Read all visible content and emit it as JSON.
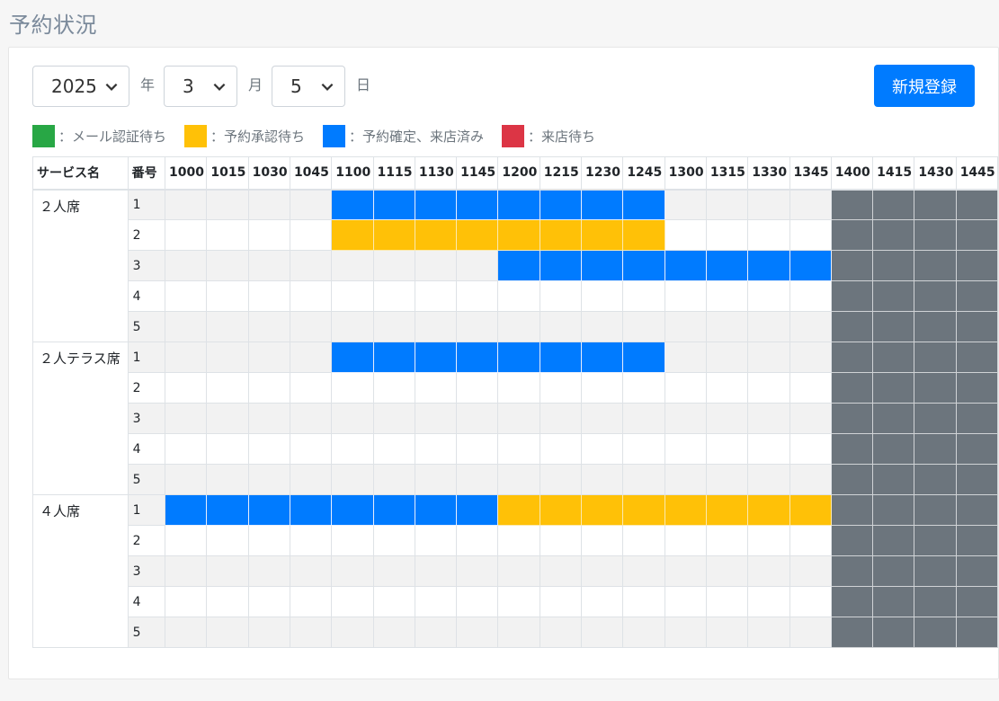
{
  "title": "予約状況",
  "date": {
    "year": "2025",
    "year_unit": "年",
    "month": "3",
    "month_unit": "月",
    "day": "5",
    "day_unit": "日"
  },
  "new_button_label": "新規登録",
  "legend": [
    {
      "color": "#28a745",
      "label": "：メール認証待ち"
    },
    {
      "color": "#ffc107",
      "label": "：予約承認待ち"
    },
    {
      "color": "#007bff",
      "label": "：予約確定、来店済み"
    },
    {
      "color": "#dc3545",
      "label": "：来店待ち"
    }
  ],
  "table": {
    "service_header": "サービス名",
    "number_header": "番号",
    "times": [
      "1000",
      "1015",
      "1030",
      "1045",
      "1100",
      "1115",
      "1130",
      "1145",
      "1200",
      "1215",
      "1230",
      "1245",
      "1300",
      "1315",
      "1330",
      "1345",
      "1400",
      "1415",
      "1430",
      "1445"
    ],
    "closed_from_index": 16,
    "services": [
      {
        "name": "２人席",
        "rows": [
          {
            "num": "1",
            "bookings": [
              {
                "start": 4,
                "end": 11,
                "status": "blue"
              }
            ]
          },
          {
            "num": "2",
            "bookings": [
              {
                "start": 4,
                "end": 11,
                "status": "yellow"
              }
            ]
          },
          {
            "num": "3",
            "bookings": [
              {
                "start": 8,
                "end": 15,
                "status": "blue"
              }
            ]
          },
          {
            "num": "4",
            "bookings": []
          },
          {
            "num": "5",
            "bookings": []
          }
        ]
      },
      {
        "name": "２人テラス席",
        "rows": [
          {
            "num": "1",
            "bookings": [
              {
                "start": 4,
                "end": 11,
                "status": "blue"
              }
            ]
          },
          {
            "num": "2",
            "bookings": []
          },
          {
            "num": "3",
            "bookings": []
          },
          {
            "num": "4",
            "bookings": []
          },
          {
            "num": "5",
            "bookings": []
          }
        ]
      },
      {
        "name": "４人席",
        "rows": [
          {
            "num": "1",
            "bookings": [
              {
                "start": 0,
                "end": 7,
                "status": "blue"
              },
              {
                "start": 8,
                "end": 15,
                "status": "yellow"
              }
            ]
          },
          {
            "num": "2",
            "bookings": []
          },
          {
            "num": "3",
            "bookings": []
          },
          {
            "num": "4",
            "bookings": []
          },
          {
            "num": "5",
            "bookings": []
          }
        ]
      }
    ]
  }
}
